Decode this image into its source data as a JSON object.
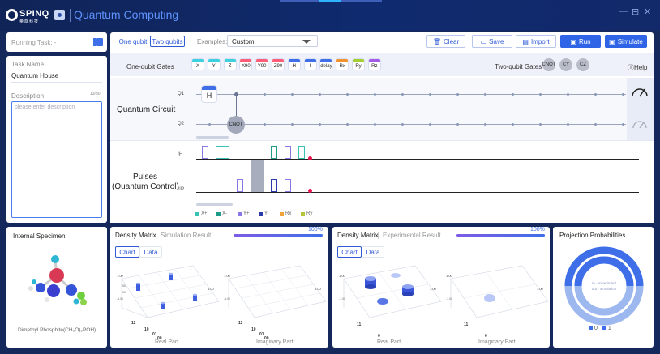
{
  "brand": {
    "word": "SPINQ",
    "sub": "量旋科技",
    "title": "Quantum Computing"
  },
  "window": {
    "minimize": "—",
    "maximize": "⊟",
    "close": "✕"
  },
  "running": {
    "label": "Running Task: -"
  },
  "task": {
    "name_label": "Task Name",
    "name_value": "Quantum House",
    "desc_label": "Description",
    "desc_count": "13/30",
    "desc_placeholder": "please enter description"
  },
  "toolbar": {
    "one_qubit": "One qubit",
    "two_qubits": "Two qubits",
    "examples_label": "Examples:",
    "examples_value": "Custom",
    "clear": "Clear",
    "save": "Save",
    "import": "Import",
    "run": "Run",
    "simulate": "Simulate"
  },
  "gates_bar": {
    "one_label": "One-qubit Gates",
    "two_label": "Two-qubit Gates",
    "help": "Help",
    "one_gates": [
      {
        "label": "X",
        "color": "#3fd0e0"
      },
      {
        "label": "Y",
        "color": "#3fd0e0"
      },
      {
        "label": "Z",
        "color": "#3fd0e0"
      },
      {
        "label": "X90",
        "color": "#ff5c7a"
      },
      {
        "label": "Y90",
        "color": "#ff5c7a"
      },
      {
        "label": "Z90",
        "color": "#ff5c7a"
      },
      {
        "label": "H",
        "color": "#3f6fe8"
      },
      {
        "label": "I",
        "color": "#3f6fe8"
      },
      {
        "label": "delay",
        "color": "#3f6fe8"
      },
      {
        "label": "Rx",
        "color": "#f0922e"
      },
      {
        "label": "Ry",
        "color": "#a4cf33"
      },
      {
        "label": "Rz",
        "color": "#a35be8"
      }
    ],
    "two_gates": [
      "CNOT",
      "CY",
      "CZ"
    ]
  },
  "circuit": {
    "title": "Quantum Circuit",
    "q1": "Q1",
    "q2": "Q2",
    "h_gate": "H",
    "cnot": "CNOT"
  },
  "pulses": {
    "title1": "Pulses",
    "title2": "(Quantum Control)",
    "ch1": "¹H",
    "ch2": "³¹P",
    "legend": [
      {
        "label": "X+",
        "color": "#37c2b3"
      },
      {
        "label": "X-",
        "color": "#1e9c88"
      },
      {
        "label": "Y+",
        "color": "#8a76e6"
      },
      {
        "label": "Y-",
        "color": "#2a3aa8"
      },
      {
        "label": "Rx",
        "color": "#f0a33a"
      },
      {
        "label": "Ry",
        "color": "#b6c43a"
      }
    ]
  },
  "specimen": {
    "title": "Internal Specimen",
    "name": "Dimethyl Phosphite(CH₃O)₂POH)"
  },
  "sim": {
    "title": "Density Matrix",
    "subtitle": "Simulation Result",
    "progress": 100,
    "progress_text": "100%",
    "tab_chart": "Chart",
    "tab_data": "Data",
    "real": "Real Part",
    "imag": "Imaginary Part",
    "ytop": "1.00",
    "ybot": "-1.00",
    "xright": "1.00"
  },
  "exp": {
    "title": "Density Matrix",
    "subtitle": "Experimental Result",
    "progress": 100,
    "progress_text": "100%",
    "tab_chart": "Chart",
    "tab_data": "Data",
    "real": "Real Part",
    "imag": "Imaginary Part",
    "ytop": "1.00",
    "ybot": "-1.00",
    "xright": "1.00"
  },
  "proj": {
    "title": "Projection Probabilities",
    "inner1": "in · experiment",
    "inner2": "out · simulation",
    "leg0": "0",
    "leg1": "1",
    "c0": "#3f6fe8",
    "c1": "#9db8ef"
  }
}
